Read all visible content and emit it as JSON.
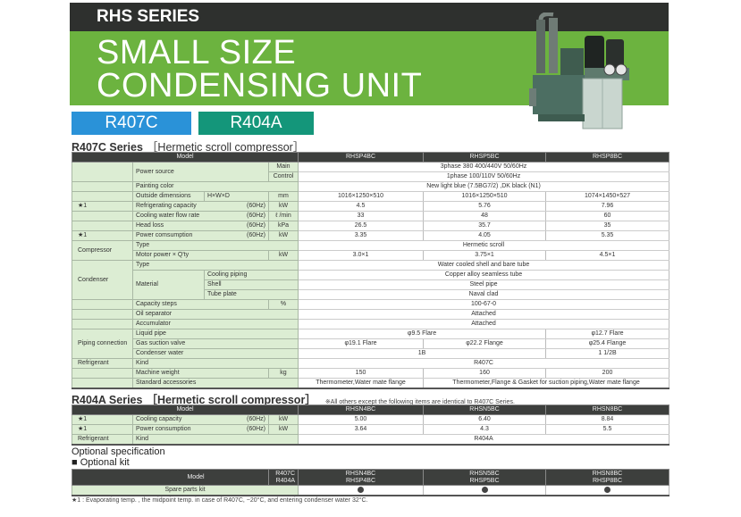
{
  "header": {
    "series": "RHS SERIES",
    "title_line1": "SMALL SIZE",
    "title_line2": "CONDENSING UNIT",
    "tags": [
      "R407C",
      "R404A"
    ],
    "colors": {
      "banner": "#6cb33f",
      "topbar": "#2e302e",
      "tag_r407c": "#2a92d8",
      "tag_r404a": "#14967a"
    }
  },
  "r407c": {
    "title": "R407C Series",
    "subtitle": "［Hermetic scroll compressor］",
    "model_label": "Model",
    "models": [
      "RHSP4BC",
      "RHSP5BC",
      "RHSP8BC"
    ],
    "rows": [
      {
        "item": "Power source",
        "unit": "Main",
        "values": [
          "3phase 380 400/440V 50/60Hz"
        ]
      },
      {
        "unit": "Control",
        "values": [
          "1phase 100/110V 50/60Hz"
        ]
      },
      {
        "item": "Painting color",
        "values": [
          "New light blue (7.5BG7/2) ,DK black (N1)"
        ]
      },
      {
        "item": "Outside dimensions",
        "sub": "H×W×D",
        "unit": "mm",
        "values": [
          "1016×1250×510",
          "1016×1250×510",
          "1074×1450×527"
        ]
      },
      {
        "mark": "★1",
        "item": "Refrigerating capacity",
        "hz": "(60Hz)",
        "unit": "kW",
        "values": [
          "4.5",
          "5.76",
          "7.96"
        ]
      },
      {
        "item": "Cooling water flow rate",
        "hz": "(60Hz)",
        "unit": "ℓ /min",
        "values": [
          "33",
          "48",
          "60"
        ]
      },
      {
        "item": "Head loss",
        "hz": "(60Hz)",
        "unit": "kPa",
        "values": [
          "26.5",
          "35.7",
          "35"
        ]
      },
      {
        "mark": "★1",
        "item": "Power comsumption",
        "hz": "(60Hz)",
        "unit": "kW",
        "values": [
          "3.35",
          "4.05",
          "5.35"
        ]
      },
      {
        "group": "Compressor",
        "item": "Type",
        "values": [
          "Hermetic scroll"
        ]
      },
      {
        "item": "Motor power × Q'ty",
        "unit": "kW",
        "values": [
          "3.0×1",
          "3.75×1",
          "4.5×1"
        ]
      },
      {
        "group": "Condenser",
        "item": "Type",
        "values": [
          "Water cooled shell and bare tube"
        ]
      },
      {
        "item": "Material",
        "sub": "Cooling piping",
        "values": [
          "Copper alloy seamless tube"
        ]
      },
      {
        "sub": "Shell",
        "values": [
          "Steel pipe"
        ]
      },
      {
        "sub": "Tube plate",
        "values": [
          "Naval clad"
        ]
      },
      {
        "item": "Capacity steps",
        "unit": "%",
        "values": [
          "100-67-0"
        ]
      },
      {
        "item": "Oil separator",
        "values": [
          "Attached"
        ]
      },
      {
        "item": "Accumulator",
        "values": [
          "Attached"
        ]
      },
      {
        "group": "Piping connection",
        "item": "Liquid pipe",
        "values": [
          "φ9.5 Flare",
          "φ12.7 Flare"
        ]
      },
      {
        "item": "Gas suction valve",
        "values": [
          "φ19.1 Flare",
          "φ22.2 Flange",
          "φ25.4 Flange"
        ]
      },
      {
        "item": "Condenser water",
        "values": [
          "1B",
          "1 1/2B"
        ]
      },
      {
        "group": "Refrigerant",
        "item": "Kind",
        "values": [
          "R407C"
        ]
      },
      {
        "item": "Machine weight",
        "unit": "kg",
        "values": [
          "150",
          "160",
          "200"
        ]
      },
      {
        "item": "Standard accessories",
        "values": [
          "Thermometer,Water mate flange",
          "Thermometer,Flange & Gasket for suction piping,Water mate flange"
        ]
      }
    ]
  },
  "r404a": {
    "title": "R404A Series",
    "subtitle": "［Hermetic scroll compressor］",
    "note": "※All others except the following items are identical to R407C Series.",
    "model_label": "Model",
    "models": [
      "RHSN4BC",
      "RHSN5BC",
      "RHSN8BC"
    ],
    "rows": [
      {
        "mark": "★1",
        "item": "Cooling capacity",
        "hz": "(60Hz)",
        "unit": "kW",
        "values": [
          "5.00",
          "6.40",
          "8.84"
        ]
      },
      {
        "mark": "★1",
        "item": "Power consumption",
        "hz": "(60Hz)",
        "unit": "kW",
        "values": [
          "3.64",
          "4.3",
          "5.5"
        ]
      },
      {
        "group": "Refrigerant",
        "item": "Kind",
        "values": [
          "R404A"
        ]
      }
    ]
  },
  "optional": {
    "heading": "Optional specification",
    "kit_heading": "■ Optional kit",
    "model_label": "Model",
    "refrigerants": [
      "R407C",
      "R404A"
    ],
    "models": [
      [
        "RHSN4BC",
        "RHSP4BC"
      ],
      [
        "RHSN5BC",
        "RHSP5BC"
      ],
      [
        "RHSN8BC",
        "RHSP8BC"
      ]
    ],
    "item": "Spare parts kit",
    "availability": [
      true,
      true,
      true
    ]
  },
  "footnote": "★1 : Evaporating temp. , the midpoint temp. in case of R407C, −20°C, and entering condenser water 32°C."
}
